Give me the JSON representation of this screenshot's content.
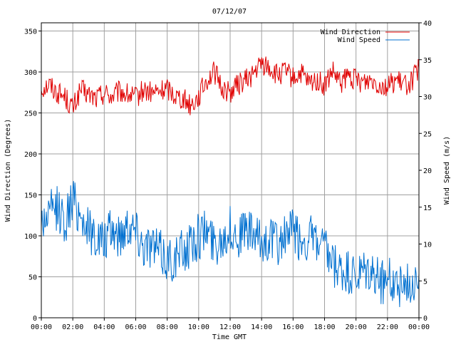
{
  "chart_data": {
    "type": "line",
    "title": "07/12/07",
    "xlabel": "Time GMT",
    "ylabel_left": "Wind Direction (Degrees)",
    "ylabel_right": "Wind Speed (m/s)",
    "x_ticks": [
      "00:00",
      "02:00",
      "04:00",
      "06:00",
      "08:00",
      "10:00",
      "12:00",
      "14:00",
      "16:00",
      "18:00",
      "20:00",
      "22:00",
      "00:00"
    ],
    "x_range_hours": [
      0,
      24
    ],
    "ylim_left": [
      0,
      360
    ],
    "yticks_left": [
      0,
      50,
      100,
      150,
      200,
      250,
      300,
      350
    ],
    "ylim_right": [
      0,
      40
    ],
    "yticks_right": [
      0,
      5,
      10,
      15,
      20,
      25,
      30,
      35,
      40
    ],
    "grid": true,
    "legend_position": "top-right",
    "series": [
      {
        "name": "Wind Direction",
        "axis": "left",
        "color": "#e00000",
        "x_hours": [
          0,
          0.5,
          1,
          1.5,
          2,
          2.5,
          3,
          3.5,
          4,
          4.5,
          5,
          5.5,
          6,
          6.5,
          7,
          7.5,
          8,
          8.5,
          9,
          9.5,
          10,
          10.5,
          11,
          11.5,
          12,
          12.5,
          13,
          13.5,
          14,
          14.5,
          15,
          15.5,
          16,
          16.5,
          17,
          17.5,
          18,
          18.5,
          19,
          19.5,
          20,
          20.5,
          21,
          21.5,
          22,
          22.5,
          23,
          23.5,
          24
        ],
        "values": [
          280,
          285,
          275,
          270,
          255,
          278,
          272,
          268,
          275,
          270,
          276,
          272,
          268,
          278,
          274,
          276,
          280,
          272,
          268,
          260,
          270,
          290,
          300,
          280,
          275,
          285,
          290,
          298,
          310,
          305,
          295,
          300,
          292,
          298,
          285,
          290,
          282,
          300,
          285,
          295,
          290,
          288,
          292,
          285,
          282,
          290,
          284,
          288,
          305
        ]
      },
      {
        "name": "Wind Speed",
        "axis": "right",
        "color": "#0070d0",
        "x_hours": [
          0,
          0.5,
          1,
          1.5,
          2,
          2.5,
          3,
          3.5,
          4,
          4.5,
          5,
          5.5,
          6,
          6.5,
          7,
          7.5,
          8,
          8.5,
          9,
          9.5,
          10,
          10.5,
          11,
          11.5,
          12,
          12.5,
          13,
          13.5,
          14,
          14.5,
          15,
          15.5,
          16,
          16.5,
          17,
          17.5,
          18,
          18.5,
          19,
          19.5,
          20,
          20.5,
          21,
          21.5,
          22,
          22.5,
          23,
          23.5,
          24
        ],
        "values": [
          13,
          14,
          15,
          13,
          16,
          14,
          12,
          11,
          10,
          12,
          11,
          13,
          12,
          10,
          10,
          9,
          8,
          8,
          9,
          10,
          11,
          12,
          10,
          11,
          12,
          11,
          12,
          11,
          10,
          11,
          10,
          11,
          12,
          10,
          11,
          10,
          9,
          7,
          6,
          6,
          5,
          6,
          6,
          5,
          5,
          5,
          4,
          5,
          6
        ]
      }
    ]
  }
}
